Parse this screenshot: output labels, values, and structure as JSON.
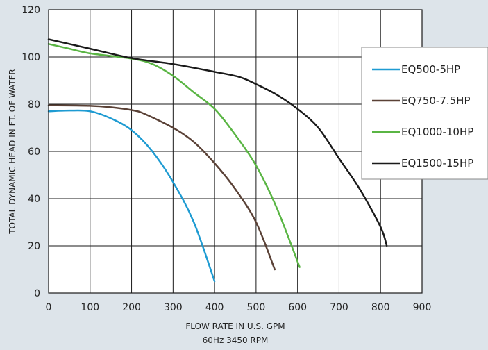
{
  "chart_data": {
    "type": "line",
    "xlabel": "FLOW RATE IN U.S. GPM",
    "xlabel_sub": "60Hz 3450 RPM",
    "ylabel": "TOTAL DYNAMIC HEAD IN FT. OF WATER",
    "xlim": [
      0,
      900
    ],
    "ylim": [
      0,
      120
    ],
    "x_ticks": [
      0,
      100,
      200,
      300,
      400,
      500,
      600,
      700,
      800,
      900
    ],
    "y_ticks": [
      0,
      20,
      40,
      60,
      80,
      100,
      120
    ],
    "grid": true,
    "legend_position": "right",
    "background_color": "#dde4ea",
    "plot_color": "#ffffff",
    "series": [
      {
        "name": "EQ500-5HP",
        "color": "#1e9bd2",
        "points": [
          [
            0,
            77
          ],
          [
            50,
            77.3
          ],
          [
            100,
            77
          ],
          [
            150,
            74
          ],
          [
            200,
            69
          ],
          [
            250,
            60
          ],
          [
            300,
            47
          ],
          [
            350,
            30
          ],
          [
            400,
            5
          ]
        ]
      },
      {
        "name": "EQ750-7.5HP",
        "color": "#5a4136",
        "points": [
          [
            0,
            79.5
          ],
          [
            100,
            79.3
          ],
          [
            150,
            78.7
          ],
          [
            200,
            77.5
          ],
          [
            230,
            76
          ],
          [
            300,
            70
          ],
          [
            350,
            64
          ],
          [
            400,
            55
          ],
          [
            450,
            44
          ],
          [
            500,
            30
          ],
          [
            545,
            10
          ]
        ]
      },
      {
        "name": "EQ1000-10HP",
        "color": "#5ab544",
        "points": [
          [
            0,
            105.5
          ],
          [
            50,
            103.5
          ],
          [
            100,
            101.5
          ],
          [
            200,
            99.3
          ],
          [
            250,
            97
          ],
          [
            300,
            92
          ],
          [
            350,
            85
          ],
          [
            400,
            78
          ],
          [
            450,
            67
          ],
          [
            500,
            54
          ],
          [
            550,
            36
          ],
          [
            605,
            11
          ]
        ]
      },
      {
        "name": "EQ1500-15HP",
        "color": "#1a1a1a",
        "points": [
          [
            0,
            107.5
          ],
          [
            100,
            103.5
          ],
          [
            200,
            99.5
          ],
          [
            300,
            97
          ],
          [
            400,
            93.7
          ],
          [
            460,
            91.5
          ],
          [
            500,
            88.5
          ],
          [
            550,
            84
          ],
          [
            600,
            78
          ],
          [
            650,
            70
          ],
          [
            700,
            57
          ],
          [
            750,
            44
          ],
          [
            800,
            28
          ],
          [
            815,
            20
          ]
        ]
      }
    ]
  }
}
